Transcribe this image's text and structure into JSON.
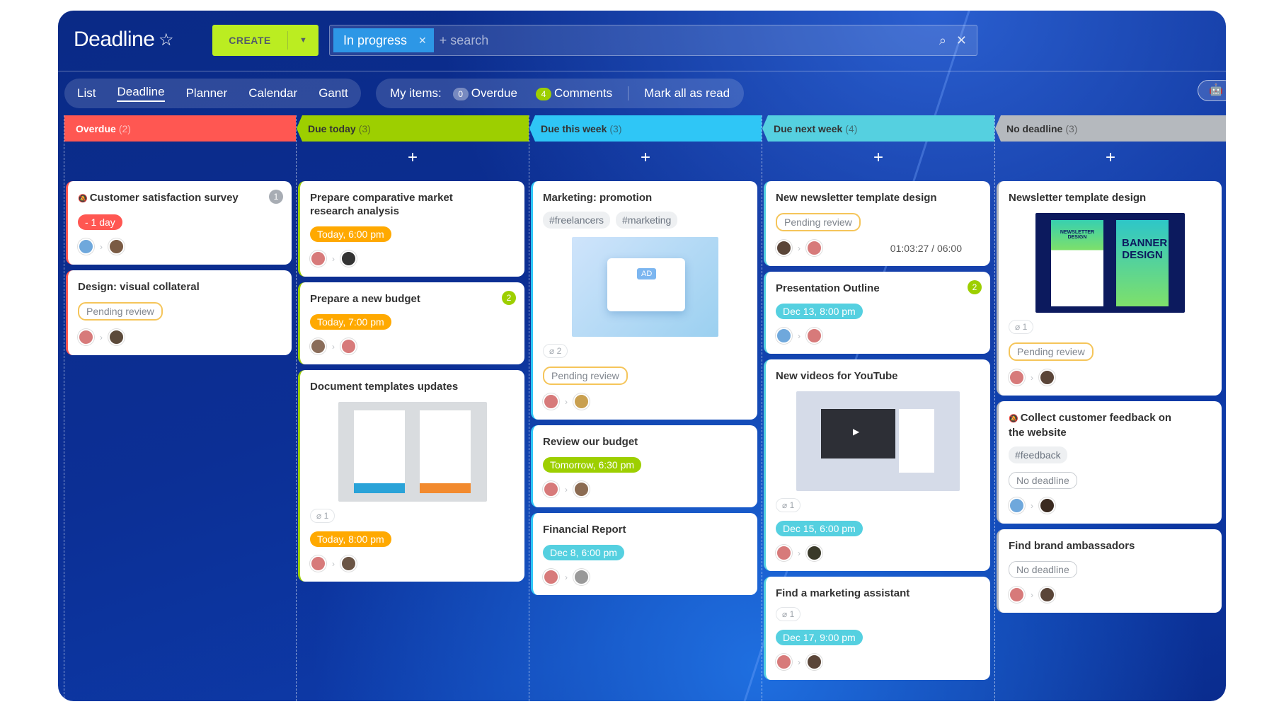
{
  "header": {
    "title": "Deadline",
    "create_label": "CREATE",
    "filter_chip": "In progress",
    "search_placeholder": "+ search"
  },
  "views": [
    "List",
    "Deadline",
    "Planner",
    "Calendar",
    "Gantt"
  ],
  "active_view": "Deadline",
  "my_items": {
    "label": "My items:",
    "overdue_count": "0",
    "overdue_label": "Overdue",
    "comments_count": "4",
    "comments_label": "Comments",
    "mark_read": "Mark all as read"
  },
  "colors": {
    "overdue": "#ff5752",
    "today": "#9dcf00",
    "this_week": "#2fc6f6",
    "next_week": "#55d0e0",
    "no_deadline": "#a8adb4",
    "orange": "#ffa900",
    "green": "#9dcf00",
    "blue": "#55d0e0",
    "gray_count": "#a8adb4"
  },
  "columns": [
    {
      "title": "Overdue",
      "count": "(2)",
      "color": "#ff5752",
      "text": "#fff",
      "plus": false,
      "cards": [
        {
          "title": "Customer satisfaction survey",
          "muted": true,
          "counter": "1",
          "counter_color": "#a8adb4",
          "badge": {
            "text": "- 1 day",
            "style": "red"
          },
          "avatars": [
            "#6fa8dc",
            "#7a5b44"
          ]
        },
        {
          "title": "Design: visual collateral",
          "badge": {
            "text": "Pending review",
            "style": "outline"
          },
          "avatars": [
            "#d77a7a",
            "#5c4a3a"
          ]
        }
      ]
    },
    {
      "title": "Due today",
      "count": "(3)",
      "color": "#9dcf00",
      "text": "#333",
      "plus": true,
      "cards": [
        {
          "title": "Prepare comparative market research analysis",
          "badge": {
            "text": "Today, 6:00 pm",
            "style": "orange"
          },
          "avatars": [
            "#d77a7a",
            "#333333"
          ]
        },
        {
          "title": "Prepare a new budget",
          "counter": "2",
          "counter_color": "#9dcf00",
          "badge": {
            "text": "Today, 7:00 pm",
            "style": "orange"
          },
          "avatars": [
            "#8a6d5a",
            "#d77a7a"
          ]
        },
        {
          "title": "Document templates updates",
          "image": "docs",
          "attachments": "1",
          "badge": {
            "text": "Today, 8:00 pm",
            "style": "orange"
          },
          "avatars": [
            "#d77a7a",
            "#6b5545"
          ]
        }
      ]
    },
    {
      "title": "Due this week",
      "count": "(3)",
      "color": "#2fc6f6",
      "text": "#333",
      "plus": true,
      "cards": [
        {
          "title": "Marketing: promotion",
          "tags": [
            "#freelancers",
            "#marketing"
          ],
          "image": "ad",
          "attachments": "2",
          "badge": {
            "text": "Pending review",
            "style": "outline"
          },
          "avatars": [
            "#d77a7a",
            "#c9a050"
          ]
        },
        {
          "title": "Review our budget",
          "badge": {
            "text": "Tomorrow, 6:30 pm",
            "style": "green"
          },
          "avatars": [
            "#d77a7a",
            "#8b6b52"
          ]
        },
        {
          "title": "Financial Report",
          "badge": {
            "text": "Dec 8, 6:00 pm",
            "style": "blue"
          },
          "avatars": [
            "#d77a7a",
            "#999999"
          ]
        }
      ]
    },
    {
      "title": "Due next week",
      "count": "(4)",
      "color": "#55d0e0",
      "text": "#333",
      "plus": true,
      "cards": [
        {
          "title": "New newsletter template design",
          "badge": {
            "text": "Pending review",
            "style": "outline"
          },
          "avatars": [
            "#5a4538",
            "#d77a7a"
          ],
          "timer": "01:03:27 / 06:00"
        },
        {
          "title": "Presentation Outline",
          "counter": "2",
          "counter_color": "#9dcf00",
          "badge": {
            "text": "Dec 13, 8:00 pm",
            "style": "blue"
          },
          "avatars": [
            "#6fa8dc",
            "#d77a7a"
          ]
        },
        {
          "title": "New videos for YouTube",
          "image": "video",
          "attachments": "1",
          "badge": {
            "text": "Dec 15, 6:00 pm",
            "style": "blue"
          },
          "avatars": [
            "#d77a7a",
            "#3a3a2a"
          ]
        },
        {
          "title": "Find a marketing assistant",
          "attachments": "1",
          "badge": {
            "text": "Dec 17, 9:00 pm",
            "style": "blue"
          },
          "avatars": [
            "#d77a7a",
            "#5a4538"
          ]
        }
      ]
    },
    {
      "title": "No deadline",
      "count": "(3)",
      "color": "#b5b9be",
      "text": "#333",
      "plus": true,
      "cards": [
        {
          "title": "Newsletter template design",
          "image": "banner",
          "image_text": {
            "left": "NEWSLETTER DESIGN",
            "right": "BANNER DESIGN"
          },
          "attachments": "1",
          "badge": {
            "text": "Pending review",
            "style": "outline"
          },
          "avatars": [
            "#d77a7a",
            "#5a4538"
          ]
        },
        {
          "title": "Collect customer feedback on the website",
          "muted": true,
          "tags": [
            "#feedback"
          ],
          "badge": {
            "text": "No deadline",
            "style": "gray"
          },
          "avatars": [
            "#6fa8dc",
            "#3a2a20"
          ]
        },
        {
          "title": "Find brand ambassadors",
          "badge": {
            "text": "No deadline",
            "style": "gray"
          },
          "avatars": [
            "#d77a7a",
            "#5a4538"
          ]
        }
      ]
    }
  ]
}
